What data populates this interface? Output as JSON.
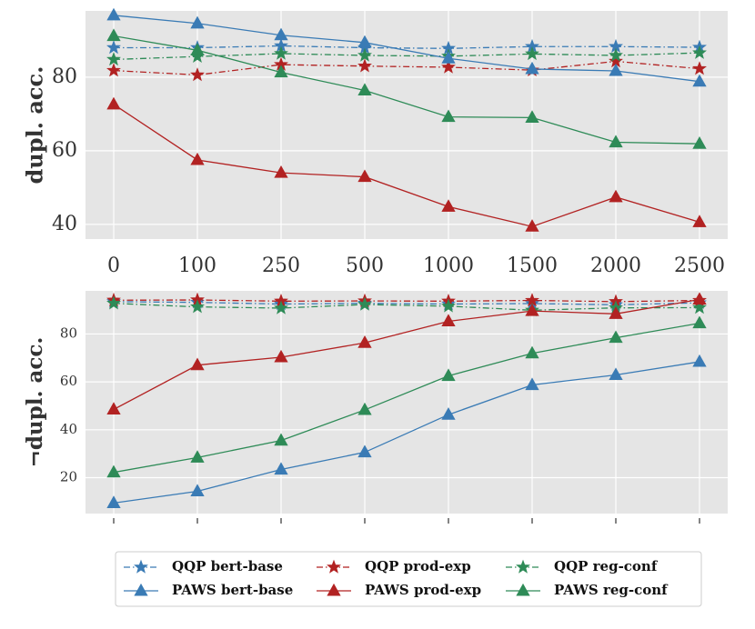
{
  "chart_data": [
    {
      "type": "line",
      "title": "",
      "xlabel": "",
      "ylabel": "dupl. acc.",
      "categories": [
        "0",
        "100",
        "250",
        "500",
        "1000",
        "1500",
        "2000",
        "2500"
      ],
      "ylim": [
        36,
        98
      ],
      "yticks": [
        40,
        60,
        80
      ],
      "show_xtick_labels": true,
      "grid": true,
      "series": [
        {
          "name": "QQP bert-base",
          "color": "#3a7bb5",
          "style": "dashdot",
          "marker": "star",
          "values": [
            88,
            88,
            88.5,
            88,
            87.8,
            88.3,
            88.3,
            88.1
          ]
        },
        {
          "name": "QQP prod-exp",
          "color": "#b22222",
          "style": "dashdot",
          "marker": "star",
          "values": [
            81.8,
            80.6,
            83.4,
            83,
            82.7,
            81.9,
            84.3,
            82.3
          ]
        },
        {
          "name": "QQP reg-conf",
          "color": "#2e8b57",
          "style": "dashdot",
          "marker": "star",
          "values": [
            84.8,
            85.6,
            86.4,
            85.9,
            85.7,
            86.3,
            85.9,
            86.6
          ]
        },
        {
          "name": "PAWS bert-base",
          "color": "#3a7bb5",
          "style": "solid",
          "marker": "triangle",
          "values": [
            96.8,
            94.6,
            91.4,
            89.4,
            85.1,
            82.2,
            81.7,
            78.8
          ]
        },
        {
          "name": "PAWS prod-exp",
          "color": "#b22222",
          "style": "solid",
          "marker": "triangle",
          "values": [
            72.6,
            57.5,
            54,
            52.9,
            44.8,
            39.4,
            47.4,
            40.6
          ]
        },
        {
          "name": "PAWS reg-conf",
          "color": "#2e8b57",
          "style": "solid",
          "marker": "triangle",
          "values": [
            91.2,
            87.3,
            81.3,
            76.4,
            69.2,
            69,
            62.3,
            61.9
          ]
        }
      ]
    },
    {
      "type": "line",
      "title": "",
      "xlabel": "",
      "ylabel": "¬dupl. acc.",
      "categories": [
        "0",
        "100",
        "250",
        "500",
        "1000",
        "1500",
        "2000",
        "2500"
      ],
      "ylim": [
        5,
        98
      ],
      "yticks": [
        20,
        40,
        60,
        80
      ],
      "show_xtick_labels": false,
      "grid": true,
      "series": [
        {
          "name": "QQP bert-base",
          "color": "#3a7bb5",
          "style": "dashdot",
          "marker": "star",
          "values": [
            93.5,
            93.2,
            92.5,
            92.8,
            92.5,
            92.7,
            92.2,
            93
          ]
        },
        {
          "name": "QQP prod-exp",
          "color": "#b22222",
          "style": "dashdot",
          "marker": "star",
          "values": [
            94.1,
            94.2,
            93.7,
            93.8,
            93.7,
            94,
            93.5,
            94
          ]
        },
        {
          "name": "QQP reg-conf",
          "color": "#2e8b57",
          "style": "dashdot",
          "marker": "star",
          "values": [
            92.8,
            91.3,
            90.8,
            92.3,
            91.6,
            89.9,
            90.9,
            91
          ]
        },
        {
          "name": "PAWS bert-base",
          "color": "#3a7bb5",
          "style": "solid",
          "marker": "triangle",
          "values": [
            9.4,
            14.3,
            23.4,
            30.6,
            46.3,
            58.7,
            62.9,
            68.4
          ]
        },
        {
          "name": "PAWS prod-exp",
          "color": "#b22222",
          "style": "solid",
          "marker": "triangle",
          "values": [
            48.5,
            67,
            70.3,
            76.3,
            85.3,
            89.6,
            88.4,
            94.4
          ]
        },
        {
          "name": "PAWS reg-conf",
          "color": "#2e8b57",
          "style": "solid",
          "marker": "triangle",
          "values": [
            22.2,
            28.4,
            35.5,
            48.3,
            62.5,
            71.9,
            78.4,
            84.5
          ]
        }
      ]
    }
  ],
  "legend": {
    "placement": "bottom-center",
    "entries": [
      "QQP bert-base",
      "QQP prod-exp",
      "QQP reg-conf",
      "PAWS bert-base",
      "PAWS prod-exp",
      "PAWS reg-conf"
    ]
  }
}
